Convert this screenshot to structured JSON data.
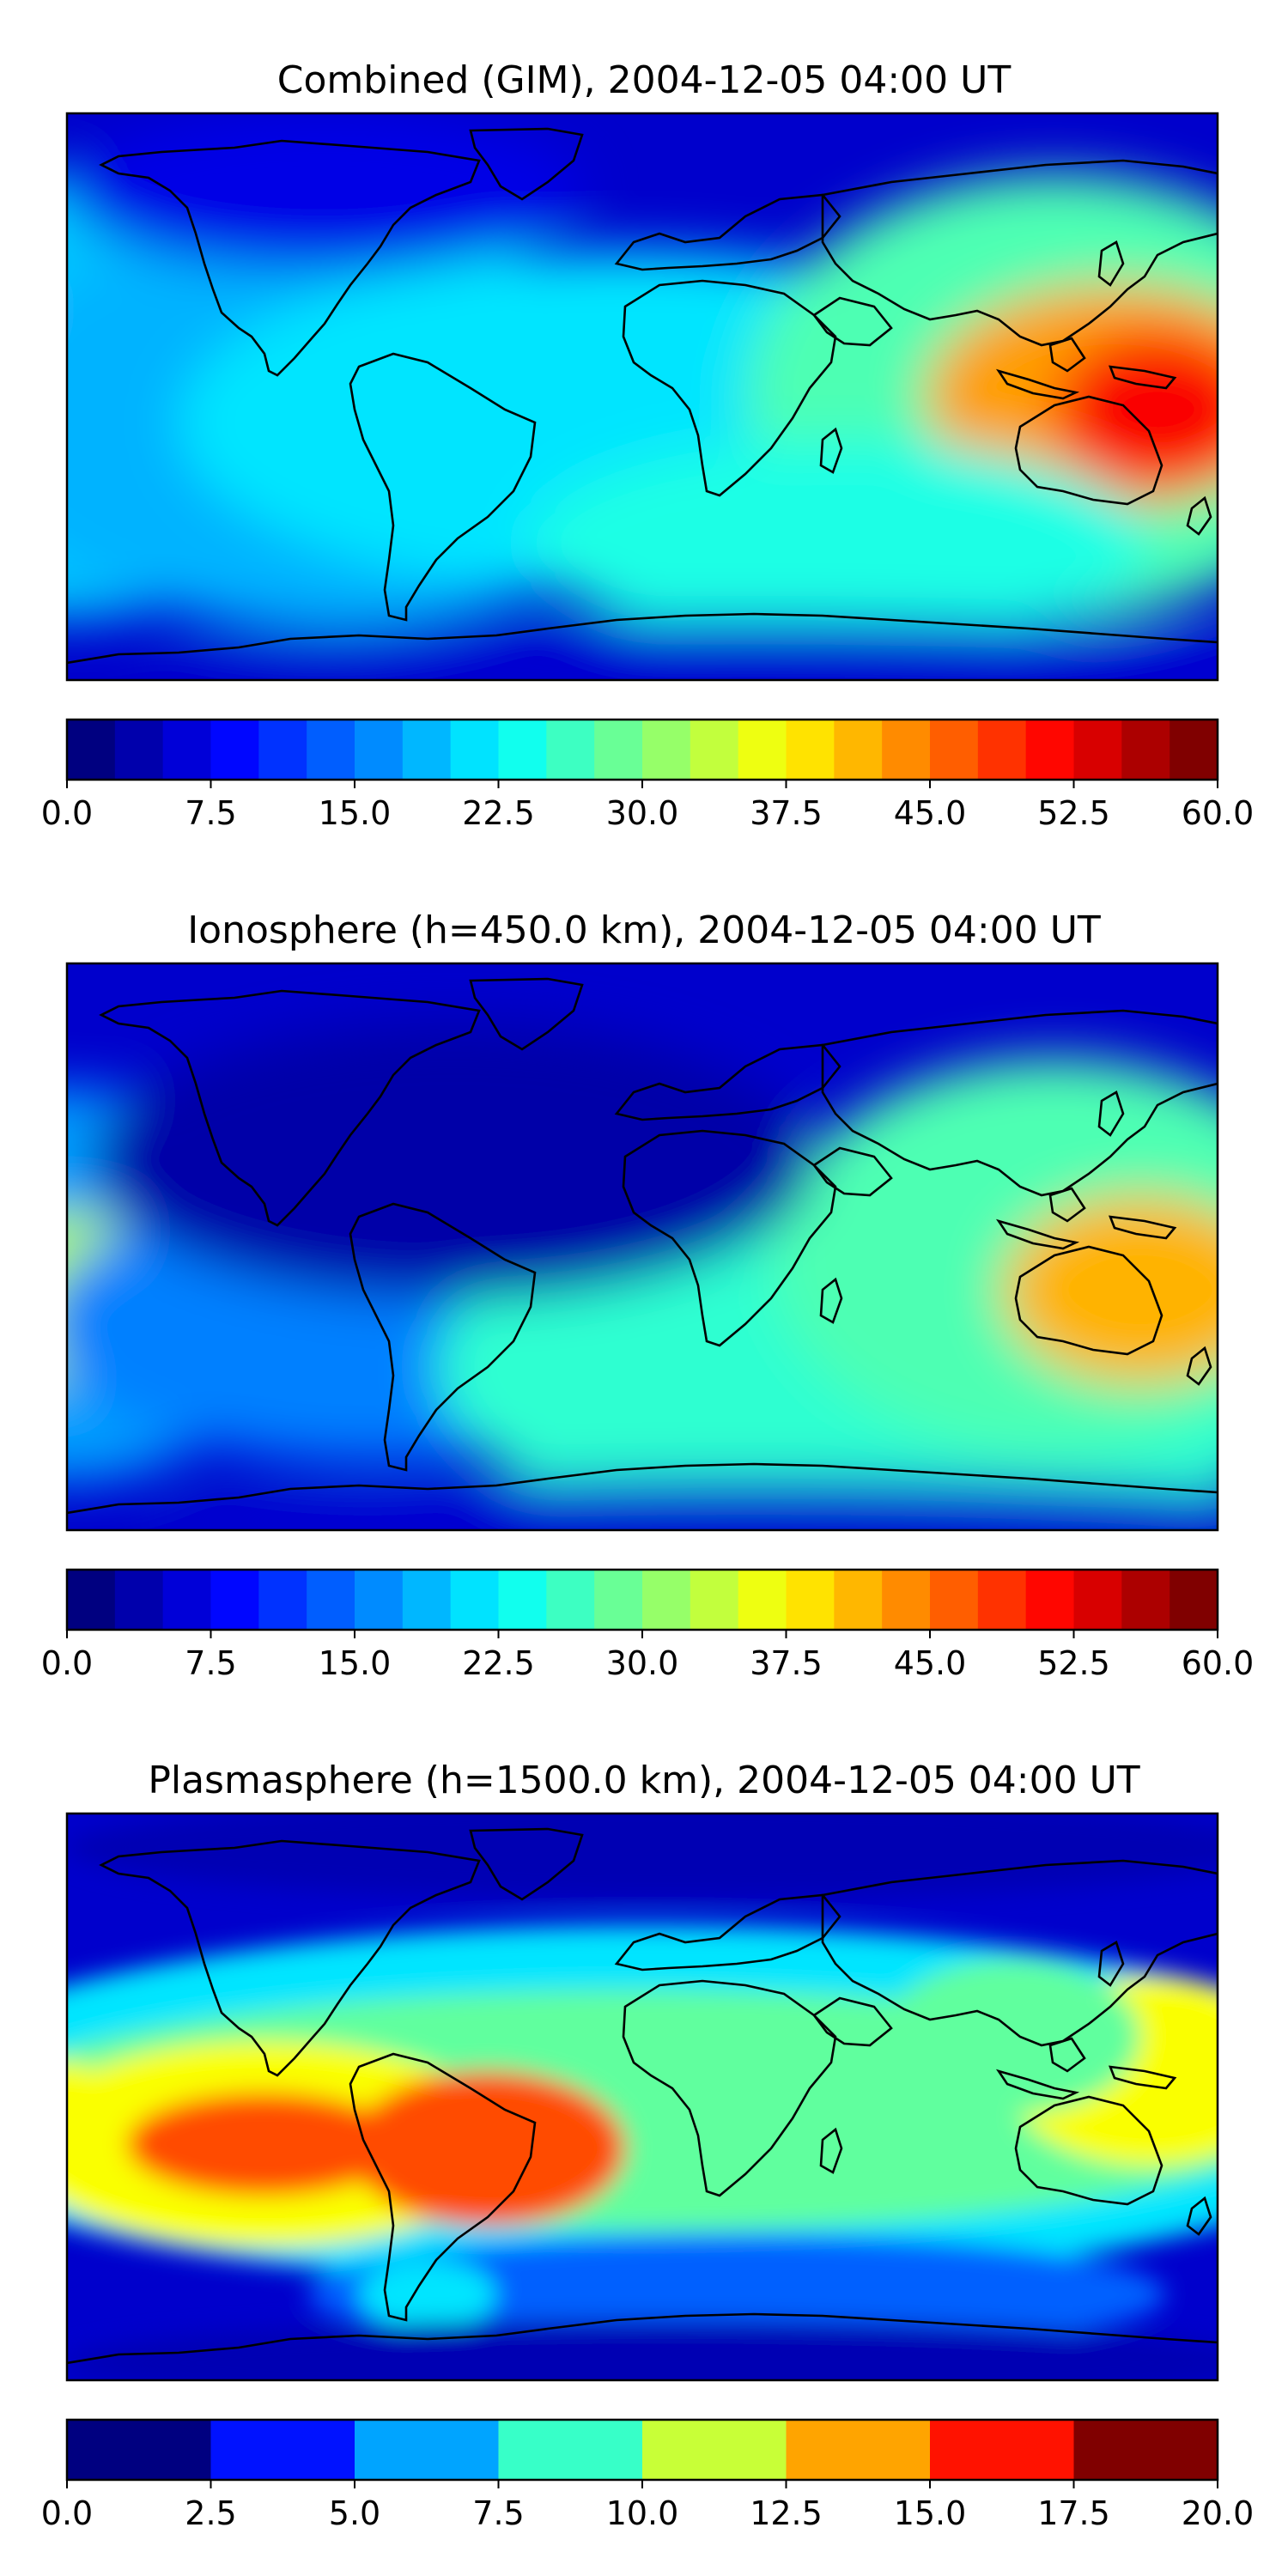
{
  "panels": [
    {
      "id": "combined",
      "title": "Combined (GIM), 2004-12-05 04:00 UT",
      "colorbar": {
        "min": 0,
        "max": 60,
        "levels": 24,
        "ticks": [
          "0.0",
          "7.5",
          "15.0",
          "22.5",
          "30.0",
          "37.5",
          "45.0",
          "52.5",
          "60.0"
        ]
      }
    },
    {
      "id": "ionosphere",
      "title": "Ionosphere  (h=450.0 km), 2004-12-05 04:00 UT",
      "colorbar": {
        "min": 0,
        "max": 60,
        "levels": 24,
        "ticks": [
          "0.0",
          "7.5",
          "15.0",
          "22.5",
          "30.0",
          "37.5",
          "45.0",
          "52.5",
          "60.0"
        ]
      }
    },
    {
      "id": "plasmasphere",
      "title": "Plasmasphere (h=1500.0 km), 2004-12-05 04:00 UT",
      "colorbar": {
        "min": 0,
        "max": 20,
        "levels": 8,
        "ticks": [
          "0.0",
          "2.5",
          "5.0",
          "7.5",
          "10.0",
          "12.5",
          "15.0",
          "17.5",
          "20.0"
        ]
      }
    }
  ],
  "colormap": "jet",
  "coastline_color": "#000000",
  "background_color": "#0000cc"
}
